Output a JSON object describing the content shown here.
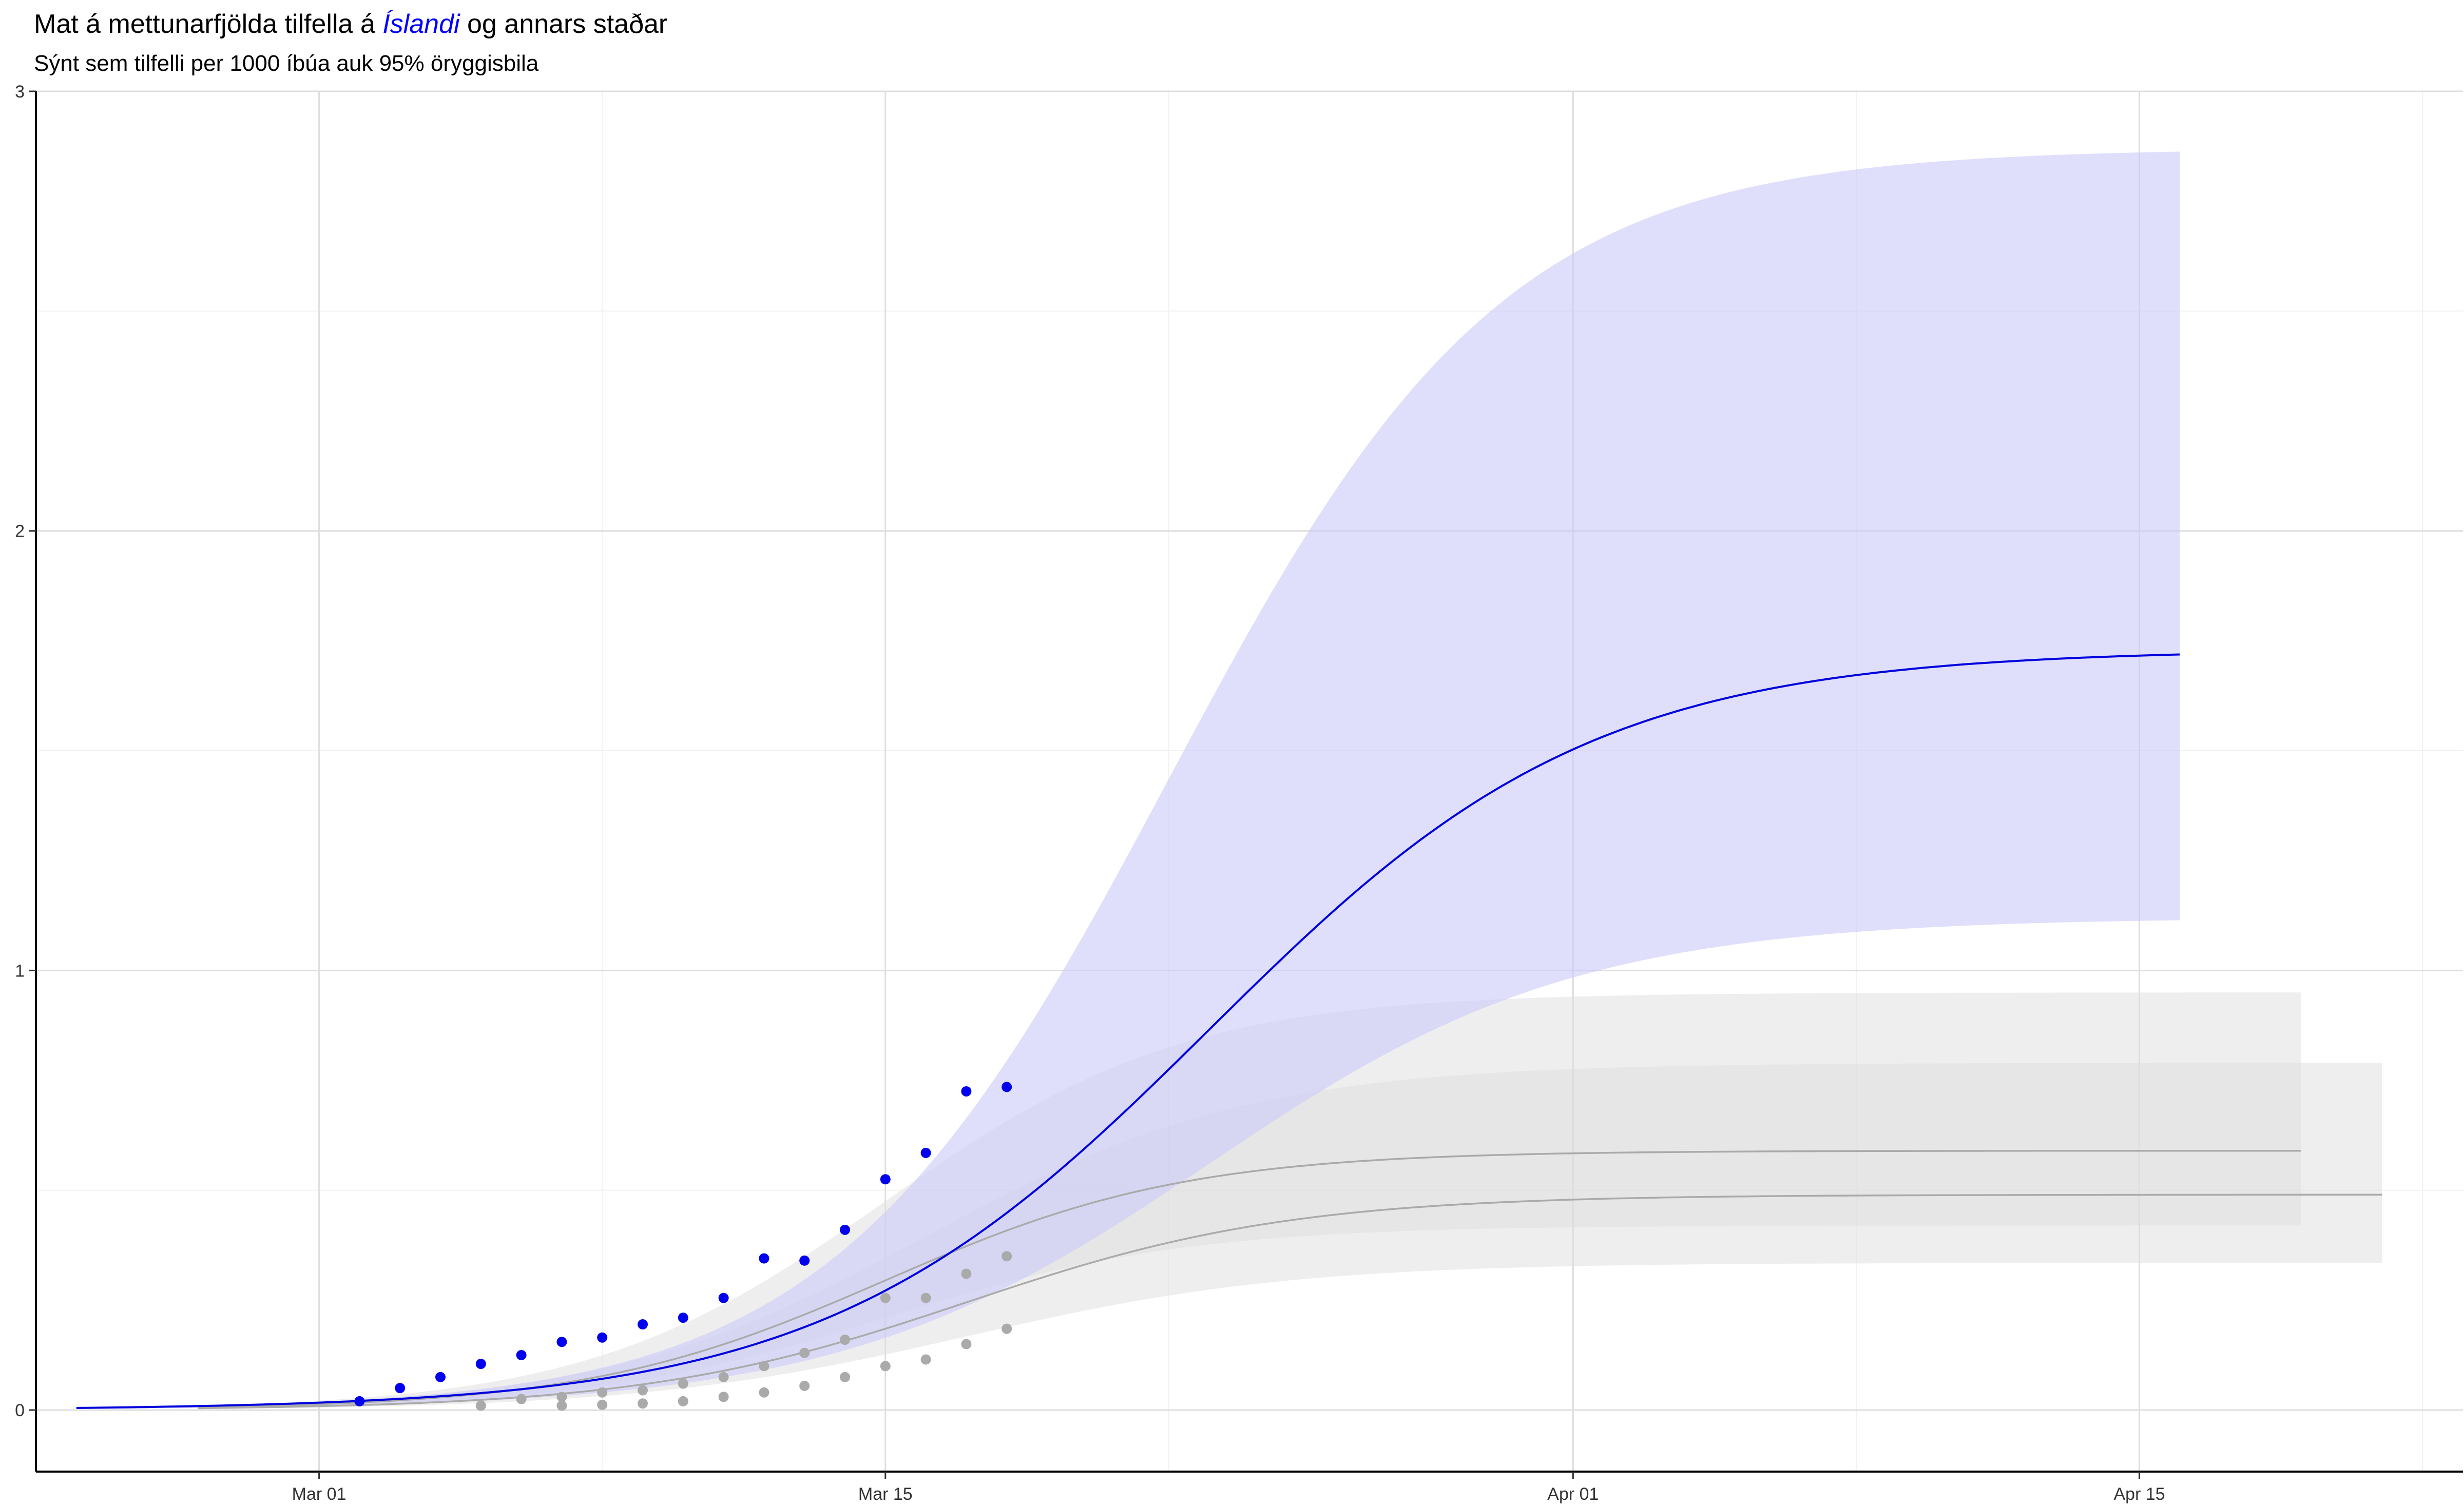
{
  "chart_data": {
    "type": "line",
    "title": {
      "before": "Mat á mettunarfjölda tilfella á ",
      "highlight": "Íslandi",
      "after": " og annars staðar"
    },
    "subtitle": "Sýnt sem tilfelli per 1000 íbúa auk 95% öryggisbila",
    "xlabel": "",
    "ylabel": "",
    "x_axis": {
      "type": "date",
      "range": [
        "2020-02-23",
        "2020-04-23"
      ],
      "ticks": [
        {
          "date": "2020-03-01",
          "label": "Mar 01"
        },
        {
          "date": "2020-03-15",
          "label": "Mar 15"
        },
        {
          "date": "2020-04-01",
          "label": "Apr 01"
        },
        {
          "date": "2020-04-15",
          "label": "Apr 15"
        }
      ],
      "minor_ticks": [
        "2020-02-23",
        "2020-03-08",
        "2020-03-22",
        "2020-04-08",
        "2020-04-22"
      ]
    },
    "y_axis": {
      "range": [
        -0.14,
        3.0
      ],
      "ticks": [
        0,
        1,
        2,
        3
      ],
      "tick_labels": [
        "0",
        "1",
        "2",
        "3"
      ],
      "minor_ticks": [
        0.5,
        1.5,
        2.5
      ]
    },
    "grid": true,
    "legend": "none",
    "colors": {
      "iceland_line": "#0000dd",
      "iceland_points": "#0000ee",
      "iceland_band": "#ccccfa",
      "other_line": "#aaaaaa",
      "other_points": "#aaaaaa",
      "other_band": "#dddddd",
      "grid_major": "#dedede",
      "grid_minor": "#f2f2f2"
    },
    "series": [
      {
        "group": "iceland",
        "fit": {
          "start": "2020-02-24",
          "end": "2020-04-16",
          "asymptote": 1.73,
          "midpoint": "2020-03-23",
          "rate": 0.21,
          "upper_asymptote": 2.87,
          "upper_midpoint": "2020-03-22",
          "upper_rate": 0.24,
          "lower_asymptote": 1.12,
          "lower_midpoint": "2020-03-23",
          "lower_rate": 0.22
        },
        "points": [
          {
            "date": "2020-03-02",
            "value": 0.02
          },
          {
            "date": "2020-03-03",
            "value": 0.05
          },
          {
            "date": "2020-03-04",
            "value": 0.075
          },
          {
            "date": "2020-03-05",
            "value": 0.105
          },
          {
            "date": "2020-03-06",
            "value": 0.125
          },
          {
            "date": "2020-03-07",
            "value": 0.155
          },
          {
            "date": "2020-03-08",
            "value": 0.165
          },
          {
            "date": "2020-03-09",
            "value": 0.195
          },
          {
            "date": "2020-03-10",
            "value": 0.21
          },
          {
            "date": "2020-03-11",
            "value": 0.255
          },
          {
            "date": "2020-03-12",
            "value": 0.345
          },
          {
            "date": "2020-03-13",
            "value": 0.34
          },
          {
            "date": "2020-03-14",
            "value": 0.41
          },
          {
            "date": "2020-03-15",
            "value": 0.525
          },
          {
            "date": "2020-03-16",
            "value": 0.585
          },
          {
            "date": "2020-03-17",
            "value": 0.725
          },
          {
            "date": "2020-03-18",
            "value": 0.735
          }
        ]
      },
      {
        "group": "other",
        "fit": {
          "start": "2020-02-27",
          "end": "2020-04-19",
          "asymptote": 0.59,
          "midpoint": "2020-03-15",
          "rate": 0.27,
          "upper_asymptote": 0.95,
          "upper_midpoint": "2020-03-15",
          "upper_rate": 0.27,
          "lower_asymptote": 0.42,
          "lower_midpoint": "2020-03-15",
          "lower_rate": 0.27
        },
        "points": [
          {
            "date": "2020-03-05",
            "value": 0.01
          },
          {
            "date": "2020-03-06",
            "value": 0.025
          },
          {
            "date": "2020-03-07",
            "value": 0.03
          },
          {
            "date": "2020-03-08",
            "value": 0.04
          },
          {
            "date": "2020-03-09",
            "value": 0.045
          },
          {
            "date": "2020-03-10",
            "value": 0.06
          },
          {
            "date": "2020-03-11",
            "value": 0.075
          },
          {
            "date": "2020-03-12",
            "value": 0.1
          },
          {
            "date": "2020-03-13",
            "value": 0.13
          },
          {
            "date": "2020-03-14",
            "value": 0.16
          },
          {
            "date": "2020-03-15",
            "value": 0.255
          },
          {
            "date": "2020-03-16",
            "value": 0.255
          },
          {
            "date": "2020-03-17",
            "value": 0.31
          },
          {
            "date": "2020-03-18",
            "value": 0.35
          }
        ]
      },
      {
        "group": "other",
        "fit": {
          "start": "2020-02-27",
          "end": "2020-04-21",
          "asymptote": 0.49,
          "midpoint": "2020-03-17",
          "rate": 0.25,
          "upper_asymptote": 0.79,
          "upper_midpoint": "2020-03-16",
          "upper_rate": 0.25,
          "lower_asymptote": 0.335,
          "lower_midpoint": "2020-03-17",
          "lower_rate": 0.25
        },
        "points": [
          {
            "date": "2020-03-07",
            "value": 0.01
          },
          {
            "date": "2020-03-08",
            "value": 0.012
          },
          {
            "date": "2020-03-09",
            "value": 0.015
          },
          {
            "date": "2020-03-10",
            "value": 0.02
          },
          {
            "date": "2020-03-11",
            "value": 0.03
          },
          {
            "date": "2020-03-12",
            "value": 0.04
          },
          {
            "date": "2020-03-13",
            "value": 0.055
          },
          {
            "date": "2020-03-14",
            "value": 0.075
          },
          {
            "date": "2020-03-15",
            "value": 0.1
          },
          {
            "date": "2020-03-16",
            "value": 0.115
          },
          {
            "date": "2020-03-17",
            "value": 0.15
          },
          {
            "date": "2020-03-18",
            "value": 0.185
          }
        ]
      }
    ]
  }
}
